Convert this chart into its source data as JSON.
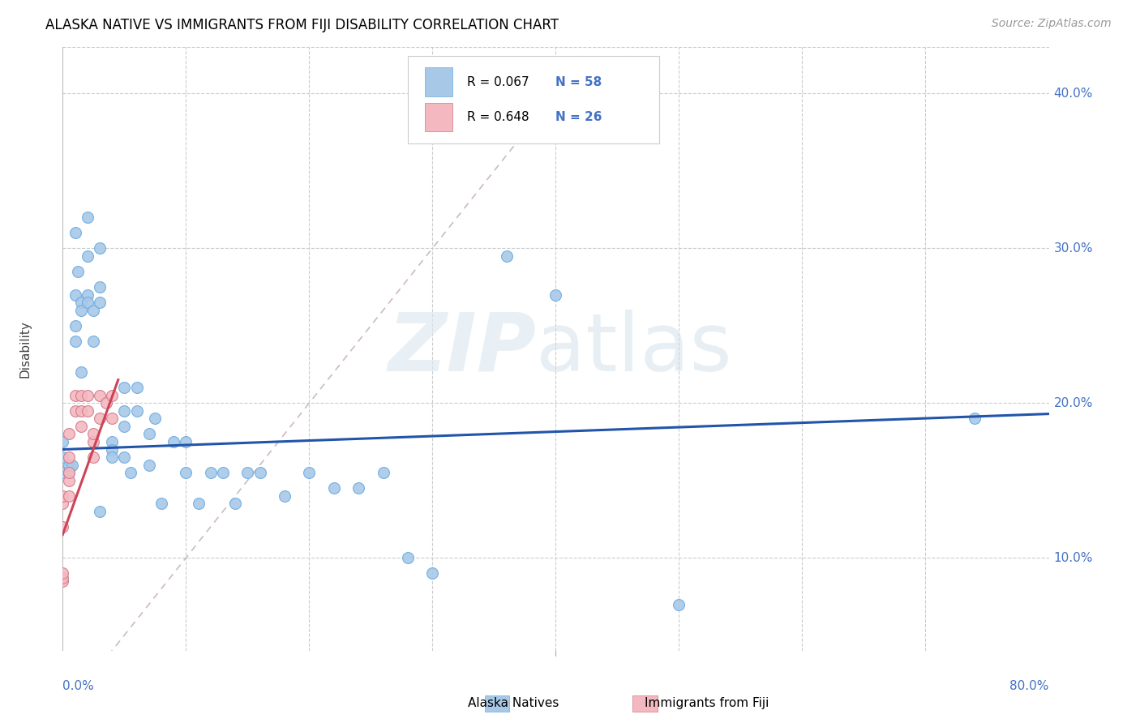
{
  "title": "ALASKA NATIVE VS IMMIGRANTS FROM FIJI DISABILITY CORRELATION CHART",
  "source": "Source: ZipAtlas.com",
  "ylabel": "Disability",
  "alaska_color": "#a8c8e8",
  "alaska_edge_color": "#6aabe0",
  "fiji_color": "#f4b8c0",
  "fiji_edge_color": "#d07888",
  "alaska_line_color": "#2255aa",
  "fiji_line_color": "#cc4455",
  "diagonal_color": "#ccbbbb",
  "xlim": [
    0.0,
    0.8
  ],
  "ylim": [
    0.04,
    0.43
  ],
  "y_ticks": [
    0.1,
    0.2,
    0.3,
    0.4
  ],
  "y_tick_labels": [
    "10.0%",
    "20.0%",
    "30.0%",
    "40.0%"
  ],
  "x_tick_labels": [
    "0.0%",
    "80.0%"
  ],
  "x_grid_lines": [
    0.1,
    0.2,
    0.3,
    0.4,
    0.5,
    0.6,
    0.7
  ],
  "legend_R1": "R = 0.067",
  "legend_N1": "N = 58",
  "legend_R2": "R = 0.648",
  "legend_N2": "N = 26",
  "bottom_legend": [
    "Alaska Natives",
    "Immigrants from Fiji"
  ],
  "alaska_points_x": [
    0.0,
    0.0,
    0.0,
    0.005,
    0.005,
    0.008,
    0.01,
    0.01,
    0.01,
    0.01,
    0.012,
    0.015,
    0.015,
    0.015,
    0.02,
    0.02,
    0.02,
    0.02,
    0.025,
    0.025,
    0.03,
    0.03,
    0.03,
    0.03,
    0.04,
    0.04,
    0.04,
    0.05,
    0.05,
    0.05,
    0.05,
    0.055,
    0.06,
    0.06,
    0.07,
    0.07,
    0.075,
    0.08,
    0.09,
    0.1,
    0.1,
    0.11,
    0.12,
    0.13,
    0.14,
    0.15,
    0.16,
    0.18,
    0.2,
    0.22,
    0.24,
    0.26,
    0.28,
    0.3,
    0.36,
    0.4,
    0.5,
    0.74
  ],
  "alaska_points_y": [
    0.175,
    0.165,
    0.155,
    0.155,
    0.16,
    0.16,
    0.31,
    0.27,
    0.25,
    0.24,
    0.285,
    0.265,
    0.26,
    0.22,
    0.32,
    0.295,
    0.27,
    0.265,
    0.26,
    0.24,
    0.3,
    0.275,
    0.265,
    0.13,
    0.175,
    0.17,
    0.165,
    0.21,
    0.195,
    0.185,
    0.165,
    0.155,
    0.21,
    0.195,
    0.18,
    0.16,
    0.19,
    0.135,
    0.175,
    0.175,
    0.155,
    0.135,
    0.155,
    0.155,
    0.135,
    0.155,
    0.155,
    0.14,
    0.155,
    0.145,
    0.145,
    0.155,
    0.1,
    0.09,
    0.295,
    0.27,
    0.07,
    0.19
  ],
  "fiji_points_x": [
    0.0,
    0.0,
    0.0,
    0.0,
    0.0,
    0.0,
    0.005,
    0.005,
    0.005,
    0.005,
    0.005,
    0.01,
    0.01,
    0.015,
    0.015,
    0.015,
    0.02,
    0.02,
    0.025,
    0.025,
    0.025,
    0.03,
    0.03,
    0.035,
    0.04,
    0.04
  ],
  "fiji_points_y": [
    0.085,
    0.087,
    0.09,
    0.12,
    0.135,
    0.14,
    0.14,
    0.15,
    0.155,
    0.165,
    0.18,
    0.195,
    0.205,
    0.185,
    0.195,
    0.205,
    0.195,
    0.205,
    0.165,
    0.175,
    0.18,
    0.19,
    0.205,
    0.2,
    0.19,
    0.205
  ],
  "alaska_trend": [
    0.0,
    0.8,
    0.17,
    0.193
  ],
  "fiji_trend": [
    0.0,
    0.045,
    0.115,
    0.215
  ]
}
